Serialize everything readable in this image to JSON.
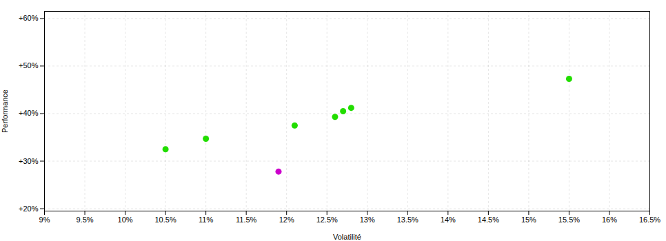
{
  "chart_data": {
    "type": "scatter",
    "xlabel": "Volatilité",
    "ylabel": "Performance",
    "xlim": [
      0.09,
      0.165
    ],
    "ylim": [
      0.195,
      0.615
    ],
    "xticks": [
      {
        "value": 0.09,
        "label": "9%"
      },
      {
        "value": 0.095,
        "label": "9.5%"
      },
      {
        "value": 0.1,
        "label": "10%"
      },
      {
        "value": 0.105,
        "label": "10.5%"
      },
      {
        "value": 0.11,
        "label": "11%"
      },
      {
        "value": 0.115,
        "label": "11.5%"
      },
      {
        "value": 0.12,
        "label": "12%"
      },
      {
        "value": 0.125,
        "label": "12.5%"
      },
      {
        "value": 0.13,
        "label": "13%"
      },
      {
        "value": 0.135,
        "label": "13.5%"
      },
      {
        "value": 0.14,
        "label": "14%"
      },
      {
        "value": 0.145,
        "label": "14.5%"
      },
      {
        "value": 0.15,
        "label": "15%"
      },
      {
        "value": 0.155,
        "label": "15.5%"
      },
      {
        "value": 0.16,
        "label": "16%"
      },
      {
        "value": 0.165,
        "label": "16.5%"
      }
    ],
    "yticks": [
      {
        "value": 0.2,
        "label": "+20%"
      },
      {
        "value": 0.3,
        "label": "+30%"
      },
      {
        "value": 0.4,
        "label": "+40%"
      },
      {
        "value": 0.5,
        "label": "+50%"
      },
      {
        "value": 0.6,
        "label": "+60%"
      }
    ],
    "grid": true,
    "series": [
      {
        "color": "#22dd00",
        "x": [
          0.105,
          0.11,
          0.121,
          0.126,
          0.127,
          0.128,
          0.155
        ],
        "values": [
          0.325,
          0.347,
          0.375,
          0.393,
          0.405,
          0.412,
          0.473
        ]
      },
      {
        "color": "#cc00cc",
        "x": [
          0.119
        ],
        "values": [
          0.278
        ]
      }
    ]
  }
}
